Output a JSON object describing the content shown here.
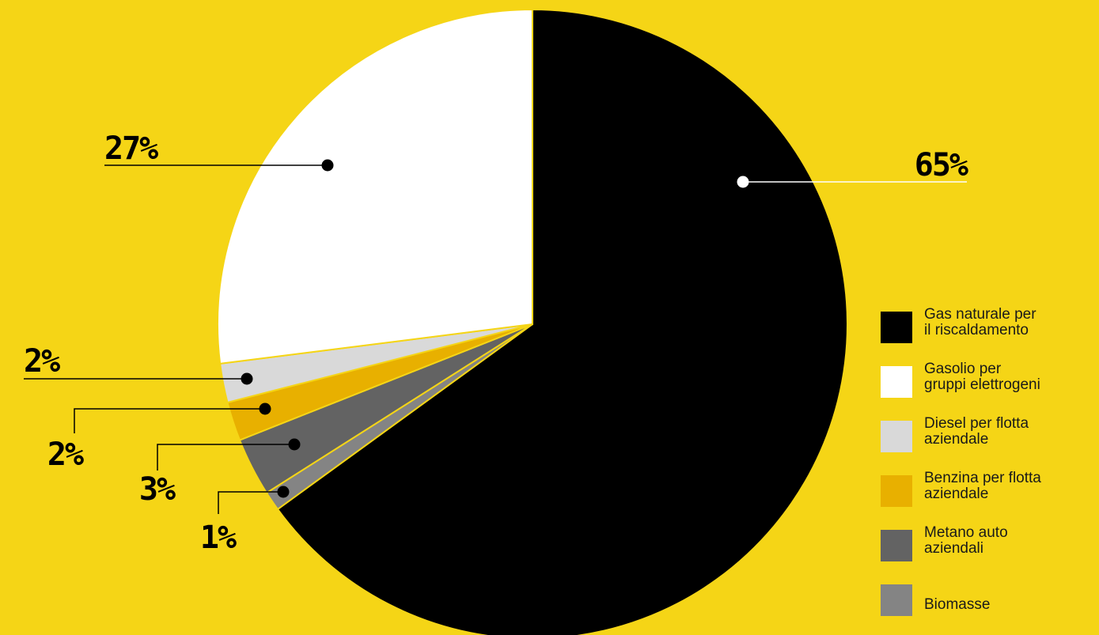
{
  "chart_data": {
    "type": "pie",
    "slices": [
      {
        "label": "Gas naturale per\nil riscaldamento",
        "value": 65,
        "display": "65%",
        "color": "#000000"
      },
      {
        "label": "Biomasse",
        "value": 1,
        "display": "1%",
        "color": "#848484"
      },
      {
        "label": "Metano auto\naziendali",
        "value": 3,
        "display": "3%",
        "color": "#636363"
      },
      {
        "label": "Benzina per flotta\naziendale",
        "value": 2,
        "display": "2%",
        "color": "#e8b000"
      },
      {
        "label": "Diesel per flotta\naziendale",
        "value": 2,
        "display": "2%",
        "color": "#d9d9d9"
      },
      {
        "label": "Gasolio per\ngruppi elettrogeni",
        "value": 27,
        "display": "27%",
        "color": "#ffffff"
      }
    ],
    "legend_order": [
      0,
      5,
      4,
      3,
      2,
      1
    ],
    "legend_position": "right",
    "start": "12 o'clock, clockwise"
  },
  "colors": {
    "background": "#f5d516",
    "separator": "#f5d516",
    "leader_dark": "#000000",
    "leader_light": "#ffffff"
  }
}
